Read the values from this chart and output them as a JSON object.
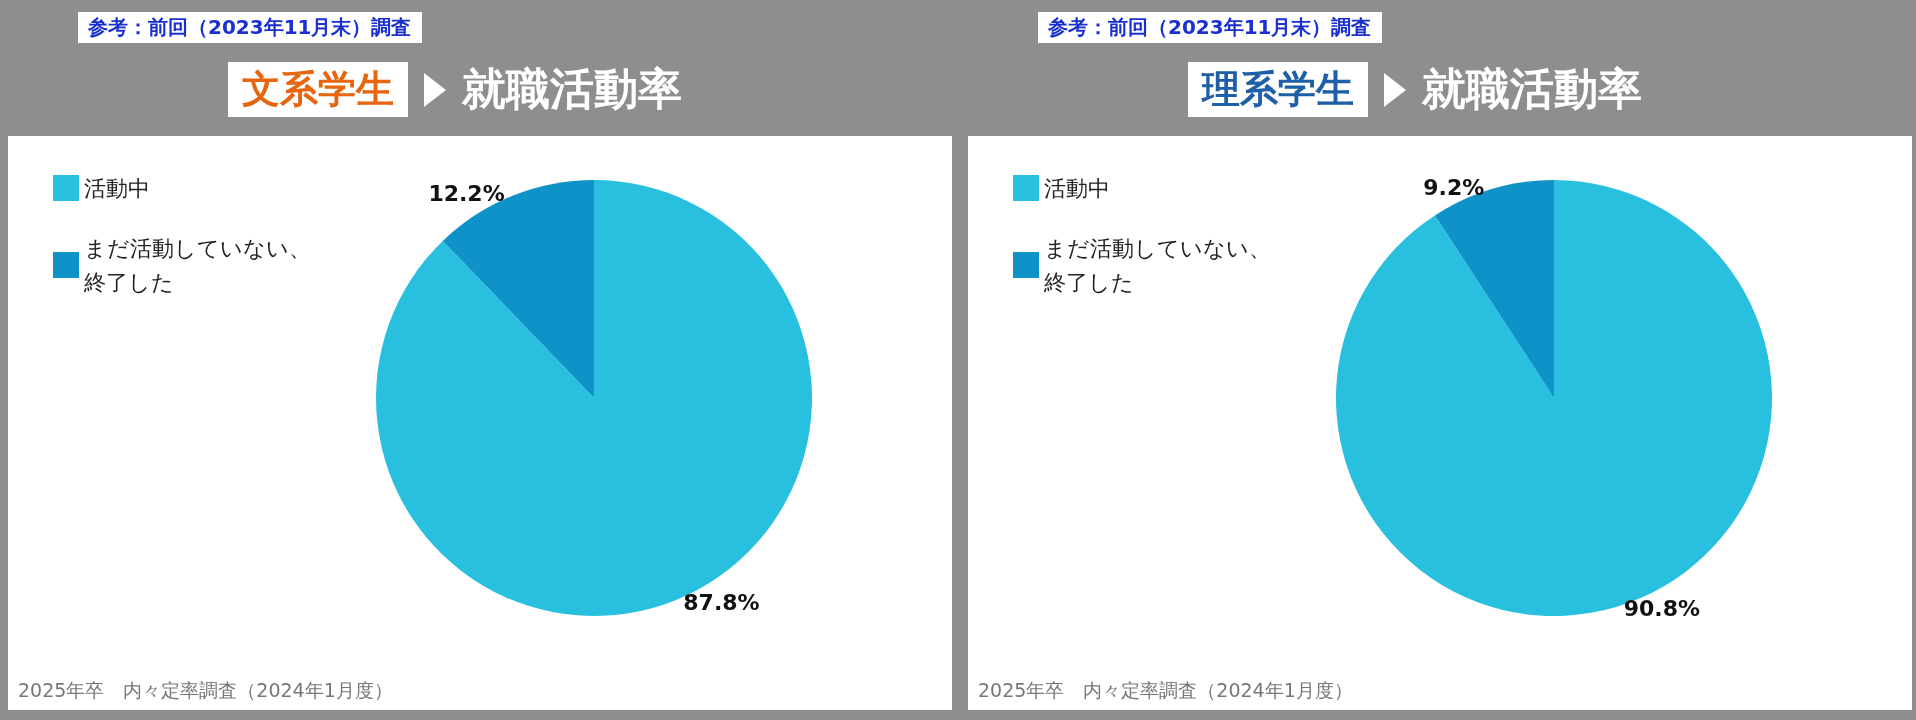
{
  "chart_data": [
    {
      "type": "pie",
      "title": "文系学生",
      "subtitle": "就職活動率",
      "annotations": [
        "参考：前回（2023年11月末）調査",
        "2025年卒　内々定率調査（2024年1月度）"
      ],
      "categories": [
        "活動中",
        "まだ活動していない、終了した"
      ],
      "values": [
        87.8,
        12.2
      ],
      "value_labels": [
        "87.8%",
        "12.2%"
      ],
      "colors": [
        "#29c0e0",
        "#0e92c8"
      ],
      "legend": "top left"
    },
    {
      "type": "pie",
      "title": "理系学生",
      "subtitle": "就職活動率",
      "annotations": [
        "参考：前回（2023年11月末）調査",
        "2025年卒　内々定率調査（2024年1月度）"
      ],
      "categories": [
        "活動中",
        "まだ活動していない、終了した"
      ],
      "values": [
        90.8,
        9.2
      ],
      "value_labels": [
        "90.8%",
        "9.2%"
      ],
      "colors": [
        "#29c0e0",
        "#0e92c8"
      ],
      "legend": "top left"
    }
  ]
}
